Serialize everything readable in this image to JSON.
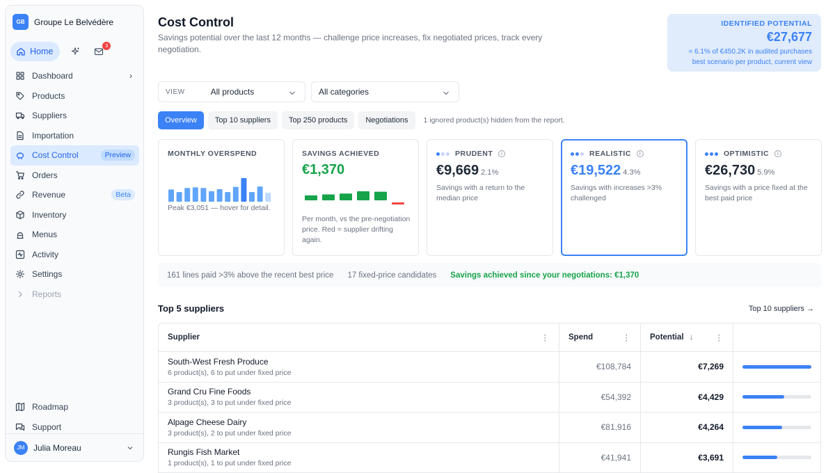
{
  "org": {
    "badge": "GB",
    "name": "Groupe Le Belvédère"
  },
  "home": {
    "label": "Home",
    "notifications": "3"
  },
  "nav": [
    {
      "label": "Dashboard",
      "icon": "dashboard-icon",
      "chevron": "›"
    },
    {
      "label": "Products",
      "icon": "tag-icon"
    },
    {
      "label": "Suppliers",
      "icon": "truck-icon"
    },
    {
      "label": "Importation",
      "icon": "file-icon"
    },
    {
      "label": "Cost Control",
      "icon": "piggy-bank-icon",
      "tag": "Preview",
      "active": true
    },
    {
      "label": "Orders",
      "icon": "cart-icon"
    },
    {
      "label": "Revenue",
      "icon": "link-icon",
      "tag": "Beta"
    },
    {
      "label": "Inventory",
      "icon": "box-icon"
    },
    {
      "label": "Menus",
      "icon": "chef-hat-icon"
    },
    {
      "label": "Activity",
      "icon": "activity-icon"
    },
    {
      "label": "Settings",
      "icon": "gear-icon"
    },
    {
      "label": "Reports",
      "icon": "chevron-right-icon",
      "muted": true
    }
  ],
  "nav_bottom": [
    {
      "label": "Roadmap",
      "icon": "map-icon"
    },
    {
      "label": "Support",
      "icon": "chat-icon"
    }
  ],
  "user": {
    "initials": "JM",
    "name": "Julia Moreau"
  },
  "page": {
    "title": "Cost Control",
    "subtitle": "Savings potential over the last 12 months — challenge price increases, fix negotiated prices, track every negotiation."
  },
  "potential": {
    "label": "IDENTIFIED POTENTIAL",
    "value": "€27,677",
    "line1": "≈ 6.1% of €450.2K in audited purchases",
    "line2": "best scenario per product, current view"
  },
  "filters": {
    "view_label": "VIEW",
    "view_value": "All products",
    "category_value": "All categories"
  },
  "tabs": [
    "Overview",
    "Top 10 suppliers",
    "Top 250 products",
    "Negotiations"
  ],
  "tabs_note": "1 ignored product(s) hidden from the report.",
  "cards": {
    "overspend": {
      "label": "MONTHLY OVERSPEND",
      "note": "Peak €3,051 — hover for detail.",
      "bars": [
        0.42,
        0.33,
        0.47,
        0.49,
        0.47,
        0.36,
        0.43,
        0.33,
        0.51,
        0.81,
        0.33,
        0.52,
        0.31
      ],
      "bar_colors": [
        "#60a5fa",
        "#60a5fa",
        "#60a5fa",
        "#60a5fa",
        "#60a5fa",
        "#60a5fa",
        "#60a5fa",
        "#60a5fa",
        "#60a5fa",
        "#3b82f6",
        "#60a5fa",
        "#60a5fa",
        "#bfdbfe"
      ]
    },
    "achieved": {
      "label": "SAVINGS ACHIEVED",
      "value": "€1,370",
      "note": "Per month, vs the pre-negotiation price. Red = supplier drifting again.",
      "values": [
        0.55,
        0.65,
        0.75,
        1.0,
        0.95,
        -0.25
      ]
    },
    "prudent": {
      "label": "PRUDENT",
      "value": "€9,669",
      "pct": "2.1%",
      "desc": "Savings with a return to the median price",
      "dots": 1
    },
    "realistic": {
      "label": "REALISTIC",
      "value": "€19,522",
      "pct": "4.3%",
      "desc": "Savings with increases >3% challenged",
      "dots": 2
    },
    "optimistic": {
      "label": "OPTIMISTIC",
      "value": "€26,730",
      "pct": "5.9%",
      "desc": "Savings with a price fixed at the best paid price",
      "dots": 3
    }
  },
  "status": {
    "lines": "161 lines paid >3% above the recent best price",
    "candidates": "17 fixed-price candidates",
    "achieved": "Savings achieved since your negotiations: €1,370"
  },
  "suppliers_section": {
    "title": "Top 5 suppliers",
    "link": "Top 10 suppliers →"
  },
  "table": {
    "headers": {
      "supplier": "Supplier",
      "spend": "Spend",
      "potential": "Potential"
    },
    "rows": [
      {
        "name": "South-West Fresh Produce",
        "sub": "6 product(s), 6 to put under fixed price",
        "spend": "€108,784",
        "potential": "€7,269",
        "share": 1.0
      },
      {
        "name": "Grand Cru Fine Foods",
        "sub": "3 product(s), 3 to put under fixed price",
        "spend": "€54,392",
        "potential": "€4,429",
        "share": 0.61
      },
      {
        "name": "Alpage Cheese Dairy",
        "sub": "3 product(s), 2 to put under fixed price",
        "spend": "€81,916",
        "potential": "€4,264",
        "share": 0.58
      },
      {
        "name": "Rungis Fish Market",
        "sub": "1 product(s), 1 to put under fixed price",
        "spend": "€41,941",
        "potential": "€3,691",
        "share": 0.51
      }
    ]
  }
}
